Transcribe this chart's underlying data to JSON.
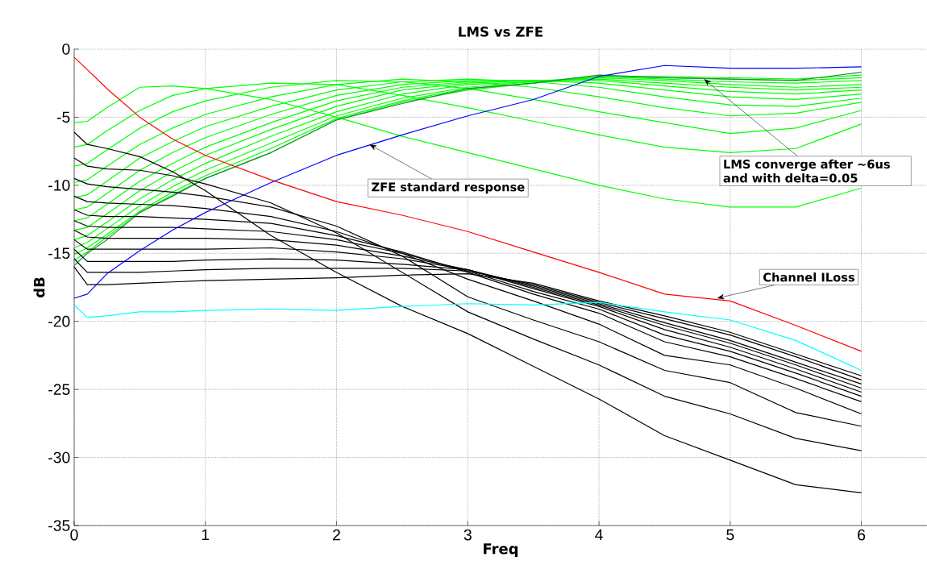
{
  "chart_data": {
    "type": "line",
    "title": "LMS vs ZFE",
    "xlabel": "Freq",
    "ylabel": "dB",
    "x": [
      0,
      0.1,
      0.25,
      0.5,
      0.75,
      1,
      1.5,
      2,
      2.5,
      3,
      3.5,
      4,
      4.5,
      5,
      5.5,
      6
    ],
    "xlim": [
      0,
      6.5
    ],
    "ylim": [
      -35,
      0
    ],
    "xticks": [
      0,
      1,
      2,
      3,
      4,
      5,
      6
    ],
    "yticks": [
      -35,
      -30,
      -25,
      -20,
      -15,
      -10,
      -5,
      0
    ],
    "grid": true,
    "series": [
      {
        "color": "#00ff00",
        "values": [
          -5.4,
          -5.3,
          -4.3,
          -2.8,
          -2.7,
          -2.9,
          -3.7,
          -5.0,
          -6.4,
          -7.6,
          -8.8,
          -10.0,
          -11.0,
          -11.6,
          -11.6,
          -10.2
        ]
      },
      {
        "color": "#00ff00",
        "values": [
          -7.2,
          -7.0,
          -6.0,
          -4.5,
          -3.4,
          -2.9,
          -2.5,
          -2.6,
          -3.4,
          -4.3,
          -5.3,
          -6.3,
          -7.2,
          -7.6,
          -7.3,
          -5.5
        ]
      },
      {
        "color": "#00ff00",
        "values": [
          -8.6,
          -8.4,
          -7.4,
          -5.8,
          -4.6,
          -3.8,
          -2.8,
          -2.3,
          -2.4,
          -2.9,
          -3.7,
          -4.6,
          -5.4,
          -6.2,
          -5.8,
          -4.5
        ]
      },
      {
        "color": "#00ff00",
        "values": [
          -9.8,
          -9.6,
          -8.6,
          -7.0,
          -5.8,
          -4.8,
          -3.5,
          -2.6,
          -2.2,
          -2.4,
          -2.8,
          -3.5,
          -4.3,
          -4.9,
          -4.7,
          -3.9
        ]
      },
      {
        "color": "#00ff00",
        "values": [
          -10.9,
          -10.7,
          -9.7,
          -8.0,
          -6.8,
          -5.7,
          -4.2,
          -3.0,
          -2.4,
          -2.2,
          -2.4,
          -2.8,
          -3.5,
          -4.1,
          -4.2,
          -3.6
        ]
      },
      {
        "color": "#00ff00",
        "values": [
          -11.8,
          -11.6,
          -10.6,
          -8.9,
          -7.6,
          -6.5,
          -4.8,
          -3.4,
          -2.6,
          -2.3,
          -2.3,
          -2.5,
          -3.0,
          -3.5,
          -3.7,
          -3.3
        ]
      },
      {
        "color": "#00ff00",
        "values": [
          -12.6,
          -12.4,
          -11.4,
          -9.7,
          -8.4,
          -7.2,
          -5.4,
          -3.8,
          -2.8,
          -2.4,
          -2.3,
          -2.3,
          -2.7,
          -3.1,
          -3.3,
          -3.0
        ]
      },
      {
        "color": "#00ff00",
        "values": [
          -13.3,
          -13.1,
          -12.1,
          -10.4,
          -9.0,
          -7.8,
          -5.9,
          -4.2,
          -3.0,
          -2.5,
          -2.3,
          -2.2,
          -2.5,
          -2.8,
          -3.0,
          -2.8
        ]
      },
      {
        "color": "#00ff00",
        "values": [
          -14.0,
          -13.7,
          -12.7,
          -11.0,
          -9.6,
          -8.4,
          -6.4,
          -4.6,
          -3.3,
          -2.6,
          -2.4,
          -2.1,
          -2.3,
          -2.6,
          -2.8,
          -2.6
        ]
      },
      {
        "color": "#00ff00",
        "values": [
          -14.6,
          -14.2,
          -13.2,
          -11.5,
          -10.1,
          -8.9,
          -6.9,
          -4.9,
          -3.6,
          -2.8,
          -2.4,
          -2.0,
          -2.2,
          -2.4,
          -2.5,
          -2.3
        ]
      },
      {
        "color": "#00ff00",
        "values": [
          -15.1,
          -14.6,
          -13.6,
          -11.9,
          -10.5,
          -9.3,
          -7.3,
          -5.1,
          -3.8,
          -2.9,
          -2.5,
          -2.0,
          -2.1,
          -2.2,
          -2.3,
          -2.1
        ]
      },
      {
        "color": "#00ff00",
        "values": [
          -15.5,
          -14.9,
          -13.8,
          -12.0,
          -10.7,
          -9.5,
          -7.6,
          -5.2,
          -3.9,
          -3.0,
          -2.5,
          -2.0,
          -2.0,
          -2.1,
          -2.2,
          -1.9
        ]
      },
      {
        "color": "#228b3b",
        "values": [
          -15.9,
          -15.0,
          -14.0,
          -12.0,
          -10.8,
          -9.5,
          -7.6,
          -5.2,
          -4.0,
          -2.9,
          -2.5,
          -1.9,
          -2.1,
          -2.2,
          -2.3,
          -1.7
        ]
      },
      {
        "color": "#000000",
        "values": [
          -6.1,
          -7.0,
          -7.3,
          -7.9,
          -9.0,
          -10.4,
          -13.7,
          -16.4,
          -18.9,
          -20.9,
          -23.3,
          -25.7,
          -28.4,
          -30.2,
          -32.0,
          -32.6
        ]
      },
      {
        "color": "#000000",
        "values": [
          -8.0,
          -8.6,
          -8.8,
          -8.9,
          -9.3,
          -9.9,
          -11.3,
          -13.5,
          -16.4,
          -19.3,
          -21.3,
          -23.2,
          -25.5,
          -26.8,
          -28.6,
          -29.5
        ]
      },
      {
        "color": "#000000",
        "values": [
          -9.5,
          -9.9,
          -10.1,
          -10.3,
          -10.5,
          -10.8,
          -11.6,
          -13.0,
          -15.2,
          -18.2,
          -19.9,
          -21.5,
          -23.6,
          -24.5,
          -26.7,
          -27.7
        ]
      },
      {
        "color": "#000000",
        "values": [
          -10.8,
          -11.2,
          -11.3,
          -11.4,
          -11.5,
          -11.7,
          -12.3,
          -13.4,
          -15.0,
          -16.9,
          -18.5,
          -20.2,
          -22.5,
          -23.2,
          -24.9,
          -26.8
        ]
      },
      {
        "color": "#000000",
        "values": [
          -11.8,
          -12.2,
          -12.3,
          -12.3,
          -12.4,
          -12.5,
          -12.8,
          -13.7,
          -14.9,
          -16.4,
          -18.0,
          -19.4,
          -21.5,
          -22.6,
          -24.2,
          -25.9
        ]
      },
      {
        "color": "#000000",
        "values": [
          -12.6,
          -13.0,
          -13.1,
          -13.1,
          -13.1,
          -13.2,
          -13.4,
          -14.0,
          -15.0,
          -16.3,
          -17.8,
          -19.1,
          -21.0,
          -22.2,
          -23.8,
          -25.5
        ]
      },
      {
        "color": "#000000",
        "values": [
          -13.3,
          -13.8,
          -13.9,
          -13.9,
          -13.9,
          -13.9,
          -14.0,
          -14.4,
          -15.2,
          -16.2,
          -17.6,
          -18.9,
          -20.6,
          -21.9,
          -23.5,
          -25.2
        ]
      },
      {
        "color": "#000000",
        "values": [
          -14.0,
          -14.7,
          -14.7,
          -14.7,
          -14.7,
          -14.7,
          -14.6,
          -14.9,
          -15.4,
          -16.2,
          -17.5,
          -18.8,
          -20.3,
          -21.6,
          -23.2,
          -24.9
        ]
      },
      {
        "color": "#000000",
        "values": [
          -14.7,
          -15.6,
          -15.6,
          -15.6,
          -15.6,
          -15.5,
          -15.4,
          -15.5,
          -15.8,
          -16.2,
          -17.4,
          -18.7,
          -20.1,
          -21.4,
          -23.0,
          -24.6
        ]
      },
      {
        "color": "#000000",
        "values": [
          -15.4,
          -16.4,
          -16.4,
          -16.4,
          -16.3,
          -16.2,
          -16.1,
          -16.1,
          -16.1,
          -16.3,
          -17.3,
          -18.6,
          -19.8,
          -21.0,
          -22.6,
          -24.3
        ]
      },
      {
        "color": "#000000",
        "values": [
          -16.0,
          -17.3,
          -17.3,
          -17.2,
          -17.1,
          -17.0,
          -16.9,
          -16.8,
          -16.6,
          -16.5,
          -17.2,
          -18.5,
          -19.6,
          -20.8,
          -22.4,
          -24.0
        ]
      },
      {
        "color": "#ff0000",
        "values": [
          -0.6,
          -1.5,
          -2.9,
          -5.0,
          -6.6,
          -7.8,
          -9.6,
          -11.2,
          -12.2,
          -13.4,
          -14.9,
          -16.4,
          -18.0,
          -18.5,
          -20.3,
          -22.2
        ]
      },
      {
        "color": "#0000ff",
        "values": [
          -18.3,
          -18.0,
          -16.5,
          -14.8,
          -13.3,
          -12.0,
          -9.8,
          -7.8,
          -6.3,
          -4.9,
          -3.7,
          -2.0,
          -1.2,
          -1.4,
          -1.4,
          -1.3
        ]
      },
      {
        "color": "#00ffff",
        "values": [
          -18.8,
          -19.7,
          -19.6,
          -19.3,
          -19.3,
          -19.2,
          -19.1,
          -19.2,
          -18.9,
          -18.7,
          -18.8,
          -18.6,
          -19.3,
          -19.9,
          -21.4,
          -23.6
        ]
      }
    ],
    "annotations": [
      {
        "text": "ZFE standard response",
        "x": 2.25,
        "y": -7.0
      },
      {
        "text": "LMS converge after ~6us and with delta=0.05",
        "x": 4.8,
        "y": -2.2
      },
      {
        "text": "Channel ILoss",
        "x": 4.9,
        "y": -18.3
      }
    ]
  }
}
